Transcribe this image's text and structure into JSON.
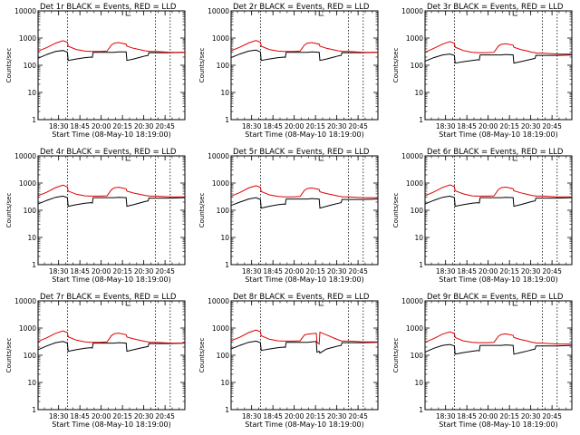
{
  "common": {
    "ylabel": "Counts/sec",
    "xlabel": "Start Time (08-May-10 18:19:00)",
    "x_ticks": [
      "18:30",
      "18:45",
      "20:00",
      "20:15",
      "20:30",
      "20:45"
    ],
    "y_ticks": [
      "1",
      "10",
      "100",
      "1000",
      "10000"
    ],
    "series_colors": {
      "events": "#000000",
      "lld": "#e00000"
    }
  },
  "chart_data": [
    {
      "type": "line",
      "title": "Det 1r BLACK = Events, RED = LLD",
      "ylabel": "Counts/sec",
      "xlabel": "Start Time (08-May-10 18:19:00)",
      "yscale": "log",
      "ylim": [
        1,
        10000
      ],
      "x": [
        0,
        0.06,
        0.12,
        0.17,
        0.2,
        0.205,
        0.26,
        0.32,
        0.36,
        0.37,
        0.375,
        0.42,
        0.47,
        0.5,
        0.52,
        0.55,
        0.6,
        0.605,
        0.65,
        0.7,
        0.73,
        0.75,
        0.755,
        0.8,
        0.85,
        0.9,
        1.0
      ],
      "series": [
        {
          "name": "BLACK = Events",
          "color": "#000000",
          "values": [
            180,
            250,
            320,
            350,
            300,
            150,
            170,
            190,
            200,
            195,
            300,
            300,
            300,
            300,
            300,
            310,
            310,
            150,
            170,
            200,
            220,
            230,
            290,
            290,
            290,
            290,
            300
          ]
        },
        {
          "name": "RED = LLD",
          "color": "#e00000",
          "values": [
            330,
            450,
            650,
            800,
            700,
            500,
            380,
            330,
            320,
            320,
            320,
            320,
            330,
            560,
            650,
            680,
            600,
            500,
            420,
            370,
            340,
            330,
            320,
            320,
            310,
            300,
            300
          ]
        }
      ],
      "vlines_x": [
        0.2,
        0.8,
        0.9
      ]
    },
    {
      "type": "line",
      "title": "Det 2r BLACK = Events, RED = LLD",
      "ylabel": "Counts/sec",
      "xlabel": "Start Time (08-May-10 18:19:00)",
      "yscale": "log",
      "ylim": [
        1,
        10000
      ],
      "x": [
        0,
        0.06,
        0.12,
        0.17,
        0.2,
        0.205,
        0.26,
        0.32,
        0.36,
        0.37,
        0.375,
        0.42,
        0.47,
        0.5,
        0.52,
        0.55,
        0.6,
        0.605,
        0.65,
        0.7,
        0.73,
        0.75,
        0.755,
        0.8,
        0.85,
        0.9,
        1.0
      ],
      "series": [
        {
          "name": "BLACK = Events",
          "color": "#000000",
          "values": [
            190,
            260,
            330,
            360,
            310,
            150,
            170,
            190,
            200,
            195,
            300,
            300,
            300,
            300,
            300,
            310,
            300,
            150,
            170,
            200,
            220,
            230,
            290,
            290,
            290,
            290,
            300
          ]
        },
        {
          "name": "RED = LLD",
          "color": "#e00000",
          "values": [
            340,
            460,
            660,
            820,
            700,
            500,
            380,
            330,
            320,
            320,
            320,
            320,
            330,
            560,
            650,
            680,
            600,
            500,
            420,
            370,
            340,
            330,
            320,
            320,
            310,
            300,
            300
          ]
        }
      ],
      "vlines_x": [
        0.2,
        0.8,
        0.9
      ]
    },
    {
      "type": "line",
      "title": "Det 3r BLACK = Events, RED = LLD",
      "ylabel": "Counts/sec",
      "xlabel": "Start Time (08-May-10 18:19:00)",
      "yscale": "log",
      "ylim": [
        1,
        10000
      ],
      "x": [
        0,
        0.06,
        0.12,
        0.17,
        0.2,
        0.205,
        0.26,
        0.32,
        0.36,
        0.37,
        0.375,
        0.42,
        0.47,
        0.5,
        0.52,
        0.55,
        0.6,
        0.605,
        0.65,
        0.7,
        0.73,
        0.75,
        0.755,
        0.8,
        0.85,
        0.9,
        1.0
      ],
      "series": [
        {
          "name": "BLACK = Events",
          "color": "#000000",
          "values": [
            140,
            190,
            240,
            260,
            230,
            120,
            135,
            150,
            160,
            155,
            240,
            240,
            240,
            240,
            240,
            250,
            240,
            120,
            135,
            155,
            170,
            180,
            230,
            230,
            230,
            230,
            240
          ]
        },
        {
          "name": "RED = LLD",
          "color": "#e00000",
          "values": [
            300,
            420,
            600,
            740,
            640,
            460,
            350,
            300,
            290,
            290,
            290,
            290,
            300,
            510,
            590,
            620,
            550,
            460,
            380,
            330,
            300,
            290,
            280,
            280,
            270,
            260,
            260
          ]
        }
      ],
      "vlines_x": [
        0.2,
        0.8,
        0.9
      ]
    },
    {
      "type": "line",
      "title": "Det 4r BLACK = Events, RED = LLD",
      "ylabel": "Counts/sec",
      "xlabel": "Start Time (08-May-10 18:19:00)",
      "yscale": "log",
      "ylim": [
        1,
        10000
      ],
      "x": [
        0,
        0.06,
        0.12,
        0.17,
        0.2,
        0.205,
        0.26,
        0.32,
        0.36,
        0.37,
        0.375,
        0.42,
        0.47,
        0.5,
        0.52,
        0.55,
        0.6,
        0.605,
        0.65,
        0.7,
        0.73,
        0.75,
        0.755,
        0.8,
        0.85,
        0.9,
        1.0
      ],
      "series": [
        {
          "name": "BLACK = Events",
          "color": "#000000",
          "values": [
            170,
            230,
            300,
            330,
            290,
            140,
            160,
            180,
            190,
            185,
            290,
            290,
            290,
            290,
            290,
            300,
            290,
            140,
            160,
            190,
            210,
            220,
            280,
            280,
            280,
            280,
            290
          ]
        },
        {
          "name": "RED = LLD",
          "color": "#e00000",
          "values": [
            340,
            460,
            680,
            840,
            720,
            510,
            390,
            340,
            330,
            330,
            330,
            330,
            340,
            570,
            670,
            700,
            610,
            510,
            430,
            380,
            350,
            340,
            330,
            330,
            320,
            310,
            310
          ]
        }
      ],
      "vlines_x": [
        0.2,
        0.8,
        0.9
      ]
    },
    {
      "type": "line",
      "title": "Det 5r BLACK = Events, RED = LLD",
      "ylabel": "Counts/sec",
      "xlabel": "Start Time (08-May-10 18:19:00)",
      "yscale": "log",
      "ylim": [
        1,
        10000
      ],
      "x": [
        0,
        0.06,
        0.12,
        0.17,
        0.2,
        0.205,
        0.26,
        0.32,
        0.36,
        0.37,
        0.375,
        0.42,
        0.47,
        0.5,
        0.52,
        0.55,
        0.6,
        0.605,
        0.65,
        0.7,
        0.73,
        0.75,
        0.755,
        0.8,
        0.85,
        0.9,
        1.0
      ],
      "series": [
        {
          "name": "BLACK = Events",
          "color": "#000000",
          "values": [
            150,
            200,
            260,
            290,
            250,
            120,
            140,
            160,
            170,
            165,
            260,
            260,
            260,
            260,
            260,
            270,
            260,
            120,
            140,
            165,
            180,
            190,
            250,
            250,
            250,
            250,
            260
          ]
        },
        {
          "name": "RED = LLD",
          "color": "#e00000",
          "values": [
            330,
            450,
            660,
            800,
            690,
            490,
            370,
            320,
            310,
            310,
            310,
            310,
            320,
            540,
            630,
            660,
            580,
            480,
            410,
            360,
            330,
            320,
            310,
            310,
            300,
            290,
            290
          ]
        }
      ],
      "vlines_x": [
        0.2,
        0.8,
        0.9
      ]
    },
    {
      "type": "line",
      "title": "Det 6r BLACK = Events, RED = LLD",
      "ylabel": "Counts/sec",
      "xlabel": "Start Time (08-May-10 18:19:00)",
      "yscale": "log",
      "ylim": [
        1,
        10000
      ],
      "x": [
        0,
        0.06,
        0.12,
        0.17,
        0.2,
        0.205,
        0.26,
        0.32,
        0.36,
        0.37,
        0.375,
        0.42,
        0.47,
        0.5,
        0.52,
        0.55,
        0.6,
        0.605,
        0.65,
        0.7,
        0.73,
        0.75,
        0.755,
        0.8,
        0.85,
        0.9,
        1.0
      ],
      "series": [
        {
          "name": "BLACK = Events",
          "color": "#000000",
          "values": [
            170,
            230,
            300,
            330,
            290,
            140,
            160,
            180,
            190,
            185,
            290,
            290,
            290,
            290,
            290,
            300,
            290,
            140,
            160,
            190,
            210,
            220,
            280,
            280,
            280,
            280,
            290
          ]
        },
        {
          "name": "RED = LLD",
          "color": "#e00000",
          "values": [
            340,
            470,
            690,
            860,
            740,
            520,
            400,
            340,
            330,
            330,
            330,
            330,
            340,
            580,
            680,
            710,
            620,
            520,
            440,
            380,
            350,
            340,
            330,
            330,
            320,
            310,
            310
          ]
        }
      ],
      "vlines_x": [
        0.2,
        0.8,
        0.9
      ]
    },
    {
      "type": "line",
      "title": "Det 7r BLACK = Events, RED = LLD",
      "ylabel": "Counts/sec",
      "xlabel": "Start Time (08-May-10 18:19:00)",
      "yscale": "log",
      "ylim": [
        1,
        10000
      ],
      "x": [
        0,
        0.06,
        0.12,
        0.17,
        0.2,
        0.205,
        0.26,
        0.32,
        0.36,
        0.37,
        0.375,
        0.42,
        0.47,
        0.5,
        0.52,
        0.55,
        0.6,
        0.605,
        0.65,
        0.7,
        0.73,
        0.75,
        0.755,
        0.8,
        0.85,
        0.9,
        1.0
      ],
      "series": [
        {
          "name": "BLACK = Events",
          "color": "#000000",
          "values": [
            160,
            220,
            290,
            320,
            280,
            140,
            160,
            180,
            190,
            185,
            280,
            280,
            280,
            280,
            280,
            290,
            280,
            140,
            160,
            185,
            200,
            210,
            270,
            270,
            270,
            270,
            280
          ]
        },
        {
          "name": "RED = LLD",
          "color": "#e00000",
          "values": [
            320,
            440,
            640,
            780,
            680,
            480,
            360,
            310,
            300,
            300,
            300,
            300,
            310,
            530,
            620,
            650,
            570,
            470,
            400,
            350,
            320,
            310,
            300,
            300,
            290,
            280,
            280
          ]
        }
      ],
      "vlines_x": [
        0.2,
        0.8,
        0.9
      ]
    },
    {
      "type": "line",
      "title": "Det 8r BLACK = Events, RED = LLD",
      "ylabel": "Counts/sec",
      "xlabel": "Start Time (08-May-10 18:19:00)",
      "yscale": "log",
      "ylim": [
        1,
        10000
      ],
      "x": [
        0,
        0.06,
        0.12,
        0.17,
        0.2,
        0.205,
        0.26,
        0.32,
        0.36,
        0.37,
        0.375,
        0.42,
        0.47,
        0.5,
        0.52,
        0.55,
        0.58,
        0.585,
        0.6,
        0.605,
        0.65,
        0.7,
        0.73,
        0.75,
        0.755,
        0.8,
        0.85,
        0.9,
        1.0
      ],
      "series": [
        {
          "name": "BLACK = Events",
          "color": "#000000",
          "values": [
            170,
            230,
            300,
            330,
            290,
            150,
            170,
            190,
            200,
            195,
            300,
            300,
            300,
            300,
            300,
            310,
            320,
            130,
            140,
            120,
            170,
            200,
            220,
            230,
            290,
            290,
            290,
            290,
            300
          ]
        },
        {
          "name": "RED = LLD",
          "color": "#e00000",
          "values": [
            340,
            460,
            680,
            850,
            730,
            520,
            390,
            340,
            330,
            330,
            330,
            330,
            340,
            560,
            600,
            620,
            640,
            300,
            260,
            700,
            560,
            430,
            370,
            340,
            330,
            330,
            320,
            310,
            310
          ]
        }
      ],
      "vlines_x": [
        0.2,
        0.8,
        0.9
      ]
    },
    {
      "type": "line",
      "title": "Det 9r BLACK = Events, RED = LLD",
      "ylabel": "Counts/sec",
      "xlabel": "Start Time (08-May-10 18:19:00)",
      "yscale": "log",
      "ylim": [
        1,
        10000
      ],
      "x": [
        0,
        0.06,
        0.12,
        0.17,
        0.2,
        0.205,
        0.26,
        0.32,
        0.36,
        0.37,
        0.375,
        0.42,
        0.47,
        0.5,
        0.52,
        0.55,
        0.6,
        0.605,
        0.65,
        0.7,
        0.73,
        0.75,
        0.755,
        0.8,
        0.85,
        0.9,
        1.0
      ],
      "series": [
        {
          "name": "BLACK = Events",
          "color": "#000000",
          "values": [
            130,
            180,
            230,
            250,
            220,
            110,
            125,
            140,
            150,
            145,
            230,
            230,
            230,
            230,
            230,
            240,
            230,
            110,
            125,
            145,
            160,
            170,
            220,
            220,
            220,
            220,
            230
          ]
        },
        {
          "name": "RED = LLD",
          "color": "#e00000",
          "values": [
            300,
            410,
            600,
            730,
            630,
            450,
            340,
            300,
            290,
            290,
            290,
            290,
            300,
            500,
            580,
            610,
            540,
            450,
            380,
            330,
            300,
            290,
            280,
            280,
            270,
            260,
            260
          ]
        }
      ],
      "vlines_x": [
        0.2,
        0.8,
        0.9
      ]
    }
  ]
}
